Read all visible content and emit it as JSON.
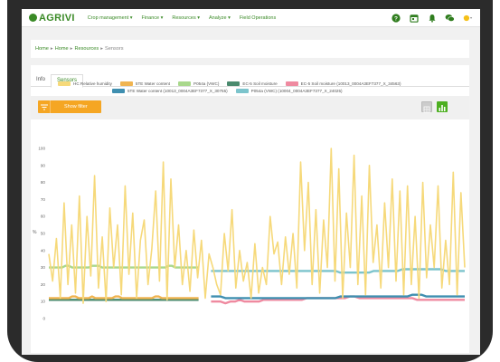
{
  "app": {
    "logo_text": "AGRIVI"
  },
  "nav": {
    "menu": [
      {
        "label": "Crop management ▾"
      },
      {
        "label": "Finance ▾"
      },
      {
        "label": "Resources ▾"
      },
      {
        "label": "Analyze ▾"
      },
      {
        "label": "Field Operations"
      }
    ],
    "icons": [
      "help-icon",
      "calendar-icon",
      "notification-bell-icon",
      "chat-icon",
      "user-menu-icon"
    ]
  },
  "breadcrumb": {
    "items": [
      "Home",
      "Home",
      "Resources"
    ],
    "current": "Sensors"
  },
  "tabs": [
    {
      "label": "Info"
    },
    {
      "label": "Sensors"
    }
  ],
  "filter": {
    "button_label": "Show filter"
  },
  "colors": {
    "brand": "#3a8a26",
    "accent": "#f5a623",
    "series_humidity": "#f6d97a",
    "series_5te_water": "#f0b450",
    "series_p054a": "#a9d88c",
    "series_ec5": "#4a8a6e",
    "series_ec5_10013": "#ef8aa0",
    "series_5te_10013": "#3f8fb0",
    "series_p054a_10004": "#7cc4cc"
  },
  "chart_data": {
    "type": "line",
    "ylabel": "%",
    "ylim": [
      0,
      100
    ],
    "yticks": [
      "0",
      "10",
      "20",
      "30",
      "40",
      "50",
      "60",
      "70",
      "80",
      "90",
      "100"
    ],
    "grid": false,
    "legend_position": "top",
    "legend": [
      "HC Relative humidity",
      "5TE Water content",
      "P054a (VWC)",
      "EC-5 Soil moisture",
      "EC-5 Soil moisture (10013_0004A3EF7377_X_34563)",
      "5TE Water content (10013_0004A3EF7377_X_30755)",
      "P054a (VWC) (10004_0004A3EF7377_X_24025)"
    ],
    "series": [
      {
        "name": "HC Relative humidity",
        "values": [
          38,
          22,
          47,
          12,
          68,
          20,
          55,
          15,
          72,
          9,
          60,
          25,
          84,
          18,
          48,
          10,
          65,
          30,
          55,
          14,
          78,
          26,
          62,
          12,
          46,
          58,
          20,
          41,
          75,
          22,
          92,
          11,
          82,
          30,
          55,
          20,
          40,
          16,
          52,
          24,
          46,
          12,
          38,
          30,
          20,
          14,
          50,
          28,
          64,
          18,
          40,
          22,
          33,
          12,
          44,
          15,
          30,
          20,
          60,
          38,
          45,
          20,
          48,
          26,
          50,
          18,
          92,
          40,
          80,
          20,
          64,
          15,
          58,
          30,
          100,
          22,
          88,
          12,
          62,
          30,
          96,
          20,
          72,
          14,
          90,
          33,
          55,
          18,
          68,
          30,
          82,
          22,
          75,
          14,
          78,
          20,
          60,
          12,
          80,
          24,
          55,
          30,
          78,
          18,
          46,
          20,
          86,
          14,
          74,
          30
        ]
      },
      {
        "name": "5TE Water content",
        "values": [
          12,
          12,
          12,
          12,
          12,
          12,
          12,
          13,
          13,
          12,
          12,
          12,
          12,
          13,
          12,
          12,
          12,
          12,
          12,
          12,
          13,
          13,
          12,
          12,
          12,
          12,
          12,
          12,
          12,
          12,
          12,
          12,
          13,
          13,
          12,
          12,
          12,
          12,
          12,
          12,
          12,
          12,
          12,
          12,
          12,
          12
        ]
      },
      {
        "name": "P054a (VWC)",
        "values": [
          30,
          30,
          30,
          30,
          30,
          31,
          31,
          30,
          30,
          30,
          30,
          30,
          30,
          31,
          31,
          31,
          30,
          30,
          30,
          30,
          30,
          30,
          30,
          30,
          30,
          30,
          30,
          30,
          30,
          30,
          30,
          30,
          30,
          30,
          30,
          30,
          31,
          31,
          30,
          30,
          30,
          30,
          30,
          30,
          30,
          30
        ]
      },
      {
        "name": "EC-5 Soil moisture",
        "values": [
          11,
          11,
          11,
          11,
          11,
          11,
          11,
          11,
          11,
          11,
          11,
          11,
          11,
          11,
          11,
          11,
          11,
          11,
          11,
          11,
          11,
          11,
          11,
          11,
          11,
          11,
          11,
          11,
          11,
          11,
          11,
          11,
          11,
          11,
          11,
          11,
          11,
          11,
          11,
          11,
          11,
          11,
          11,
          11,
          11,
          11
        ]
      },
      {
        "name": "EC-5 Soil moisture (10013_0004A3EF7377_X_34563)",
        "values": [
          10,
          10,
          10,
          9,
          10,
          10,
          11,
          10,
          10,
          10,
          10,
          11,
          11,
          11,
          11,
          11,
          11,
          11,
          11,
          11,
          12,
          12,
          12,
          12,
          12,
          12,
          12,
          12,
          12,
          13,
          13,
          12,
          12,
          12,
          12,
          12,
          12,
          12,
          12,
          12,
          12,
          12,
          12,
          11,
          11,
          11,
          11,
          11,
          11,
          11,
          11,
          11,
          11,
          11
        ]
      },
      {
        "name": "5TE Water content (10013_0004A3EF7377_X_30755)",
        "values": [
          13,
          13,
          13,
          12,
          12,
          12,
          12,
          12,
          12,
          12,
          12,
          12,
          12,
          12,
          12,
          12,
          12,
          12,
          12,
          12,
          12,
          12,
          12,
          12,
          12,
          12,
          12,
          13,
          13,
          13,
          13,
          13,
          13,
          13,
          13,
          13,
          13,
          13,
          13,
          13,
          13,
          13,
          14,
          14,
          14,
          13,
          13,
          13,
          13,
          13,
          13,
          13,
          13,
          13
        ]
      },
      {
        "name": "P054a (VWC) (10004_0004A3EF7377_X_24025)",
        "values": [
          28,
          28,
          28,
          28,
          28,
          28,
          28,
          28,
          28,
          28,
          28,
          28,
          28,
          28,
          28,
          28,
          28,
          28,
          28,
          28,
          28,
          28,
          28,
          28,
          28,
          28,
          28,
          27,
          27,
          27,
          27,
          27,
          27,
          27,
          28,
          28,
          28,
          28,
          28,
          28,
          29,
          29,
          29,
          29,
          29,
          29,
          29,
          29,
          29,
          28,
          28,
          28,
          28,
          28
        ]
      }
    ]
  }
}
